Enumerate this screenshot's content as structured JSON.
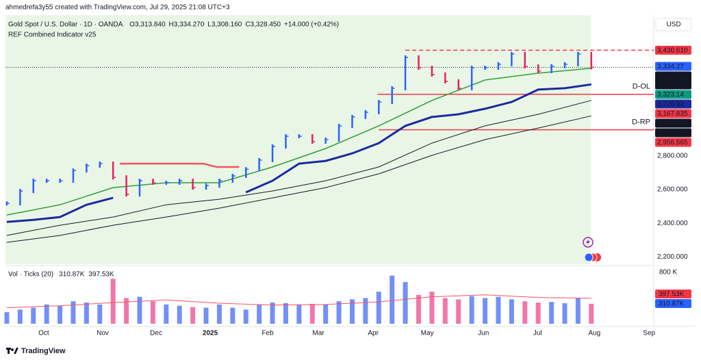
{
  "attribution": "ahmedrefa3y55 created with TradingView.com, Jul 29, 2025 21:08 UTC+3",
  "footer": "TradingView",
  "chart_data": {
    "type": "stock",
    "title": "Gold Spot / U.S. Dollar · 1D · OANDA",
    "ohlc": [
      "O3,313.840",
      "H3,334.270",
      "L3,308.160",
      "C3,328.450"
    ],
    "change": "+14.000 (+0.42%)",
    "indicator": "REF Combined Indicator v25",
    "currency": "USD",
    "xlim": [
      -0.1,
      48.7
    ],
    "xticks": [
      {
        "value": 2.78,
        "label": "Oct"
      },
      {
        "value": 7.22,
        "label": "Nov"
      },
      {
        "value": 11.24,
        "label": "Dec"
      },
      {
        "value": 15.31,
        "label": "2025"
      },
      {
        "value": 19.64,
        "label": "Feb"
      },
      {
        "value": 23.45,
        "label": "Mar"
      },
      {
        "value": 27.58,
        "label": "Apr"
      },
      {
        "value": 31.65,
        "label": "May"
      },
      {
        "value": 35.88,
        "label": "Jun"
      },
      {
        "value": 39.95,
        "label": "Jul"
      },
      {
        "value": 44.23,
        "label": "Aug"
      },
      {
        "value": 48.35,
        "label": "Sep"
      }
    ],
    "ylim": [
      2160,
      3640
    ],
    "yticks": [
      {
        "value": 2200,
        "label": "2,200.000"
      },
      {
        "value": 2400,
        "label": "2,400.000"
      },
      {
        "value": 2600,
        "label": "2,600.000"
      },
      {
        "value": 2800,
        "label": "2,800.000"
      }
    ],
    "price": {
      "up_color": "#2962ff",
      "down_color": "#e91e63",
      "values": [
        2518,
        2592,
        2653,
        2653,
        2653,
        2714,
        2743,
        2755,
        2673,
        2571,
        2653,
        2641,
        2641,
        2653,
        2612,
        2624,
        2653,
        2682,
        2722,
        2776,
        2857,
        2918,
        2918,
        2886,
        2898,
        2980,
        3033,
        3061,
        3122,
        3204,
        3388,
        3326,
        3286,
        3245,
        3204,
        3326,
        3326,
        3347,
        3408,
        3334,
        3306,
        3335,
        3347,
        3408,
        3328.45
      ]
    },
    "lines": [
      {
        "color": "#2e9e36",
        "width": 1.5,
        "x": [
          0,
          4,
          8,
          12,
          16,
          20,
          24,
          28,
          32,
          36,
          40,
          44
        ],
        "values": [
          2449,
          2510,
          2612,
          2641,
          2641,
          2735,
          2845,
          2980,
          3131,
          3253,
          3294,
          3323.14
        ]
      },
      {
        "color": "#131722",
        "width": 1,
        "x": [
          0,
          4,
          8,
          12,
          16,
          20,
          24,
          28,
          32,
          36,
          40,
          44
        ],
        "values": [
          2327,
          2388,
          2437,
          2510,
          2543,
          2592,
          2653,
          2735,
          2877,
          2980,
          3049,
          3131.72
        ]
      },
      {
        "color": "#131722",
        "width": 1,
        "x": [
          0,
          4,
          8,
          12,
          16,
          20,
          24,
          28,
          32,
          36,
          40,
          44
        ],
        "values": [
          2286,
          2327,
          2388,
          2437,
          2490,
          2551,
          2612,
          2694,
          2804,
          2898,
          2967,
          3039.34
        ]
      },
      {
        "color": "#1a2a9e",
        "width": 3,
        "x": [
          0,
          2,
          4,
          6,
          8,
          10,
          18,
          20,
          22,
          24,
          26,
          28,
          30,
          32,
          34,
          36,
          38,
          40,
          42,
          44
        ],
        "values": [
          2408,
          2420,
          2437,
          2510,
          2551,
          null,
          2584,
          2653,
          2755,
          2771,
          2816,
          2877,
          2980,
          3033,
          3049,
          3082,
          3122,
          3196,
          3204,
          3226.92
        ]
      },
      {
        "color": "#f7525f",
        "width": 2.5,
        "x": [
          8.5,
          14.8,
          15.8,
          17.5
        ],
        "values": [
          2755,
          2755,
          2735,
          2735
        ]
      }
    ],
    "levels": [
      {
        "value": 3430.61,
        "from": 30,
        "color": "#f23645",
        "dashed": true
      },
      {
        "value": 3167.835,
        "from": 27.9,
        "color": "#f23645",
        "dashed": false,
        "label": "D-OL"
      },
      {
        "value": 2956.565,
        "from": 28,
        "color": "#f23645",
        "dashed": false,
        "label": "D-RP"
      },
      {
        "value": 3328.45,
        "from": -0.1,
        "color": "#131722",
        "dotted": true
      }
    ],
    "price_tags": [
      {
        "value": 3430.61,
        "label": "3,430.610",
        "color": "#f23645"
      },
      {
        "value": 3334.27,
        "label": "3,334.27",
        "color": "#2962ff"
      },
      {
        "value": 3328.45,
        "label": "3,328.450",
        "countdown": "02:51:28",
        "color": "#131722"
      },
      {
        "value": 3323.14,
        "label": "3,323.14",
        "color": "#089981"
      },
      {
        "value": 3226.92,
        "label": "3,226.92",
        "color": "#1a2a9e"
      },
      {
        "value": 3167.835,
        "label": "3,167.835",
        "color": "#f23645"
      },
      {
        "value": 3131.72,
        "label": "3,131.72",
        "color": "#131722"
      },
      {
        "value": 3039.34,
        "label": "3,039.34",
        "color": "#131722"
      },
      {
        "value": 2956.565,
        "label": "2,956.565",
        "color": "#f23645"
      }
    ],
    "volume": {
      "title": "Vol · Ticks (20)",
      "ylim": [
        0,
        864
      ],
      "yticks": [
        {
          "value": 800,
          "label": "800 K"
        }
      ],
      "values": [
        180,
        220,
        250,
        300,
        280,
        350,
        330,
        300,
        700,
        400,
        420,
        350,
        300,
        280,
        260,
        250,
        300,
        250,
        220,
        300,
        330,
        320,
        300,
        310,
        300,
        350,
        380,
        400,
        500,
        750,
        650,
        450,
        500,
        400,
        380,
        430,
        400,
        420,
        380,
        350,
        330,
        340,
        320,
        400,
        310.87
      ],
      "ma": {
        "color": "#f7525f",
        "x": [
          0,
          4,
          8,
          12,
          16,
          20,
          24,
          28,
          32,
          36,
          40,
          44
        ],
        "values": [
          250,
          280,
          330,
          370,
          320,
          290,
          300,
          340,
          420,
          450,
          410,
          397.53
        ]
      },
      "tags": [
        {
          "value": 397.53,
          "label": "397.53K",
          "color": "#f23645"
        },
        {
          "value": 310.87,
          "label": "310.87K",
          "color": "#2962ff"
        }
      ]
    }
  }
}
